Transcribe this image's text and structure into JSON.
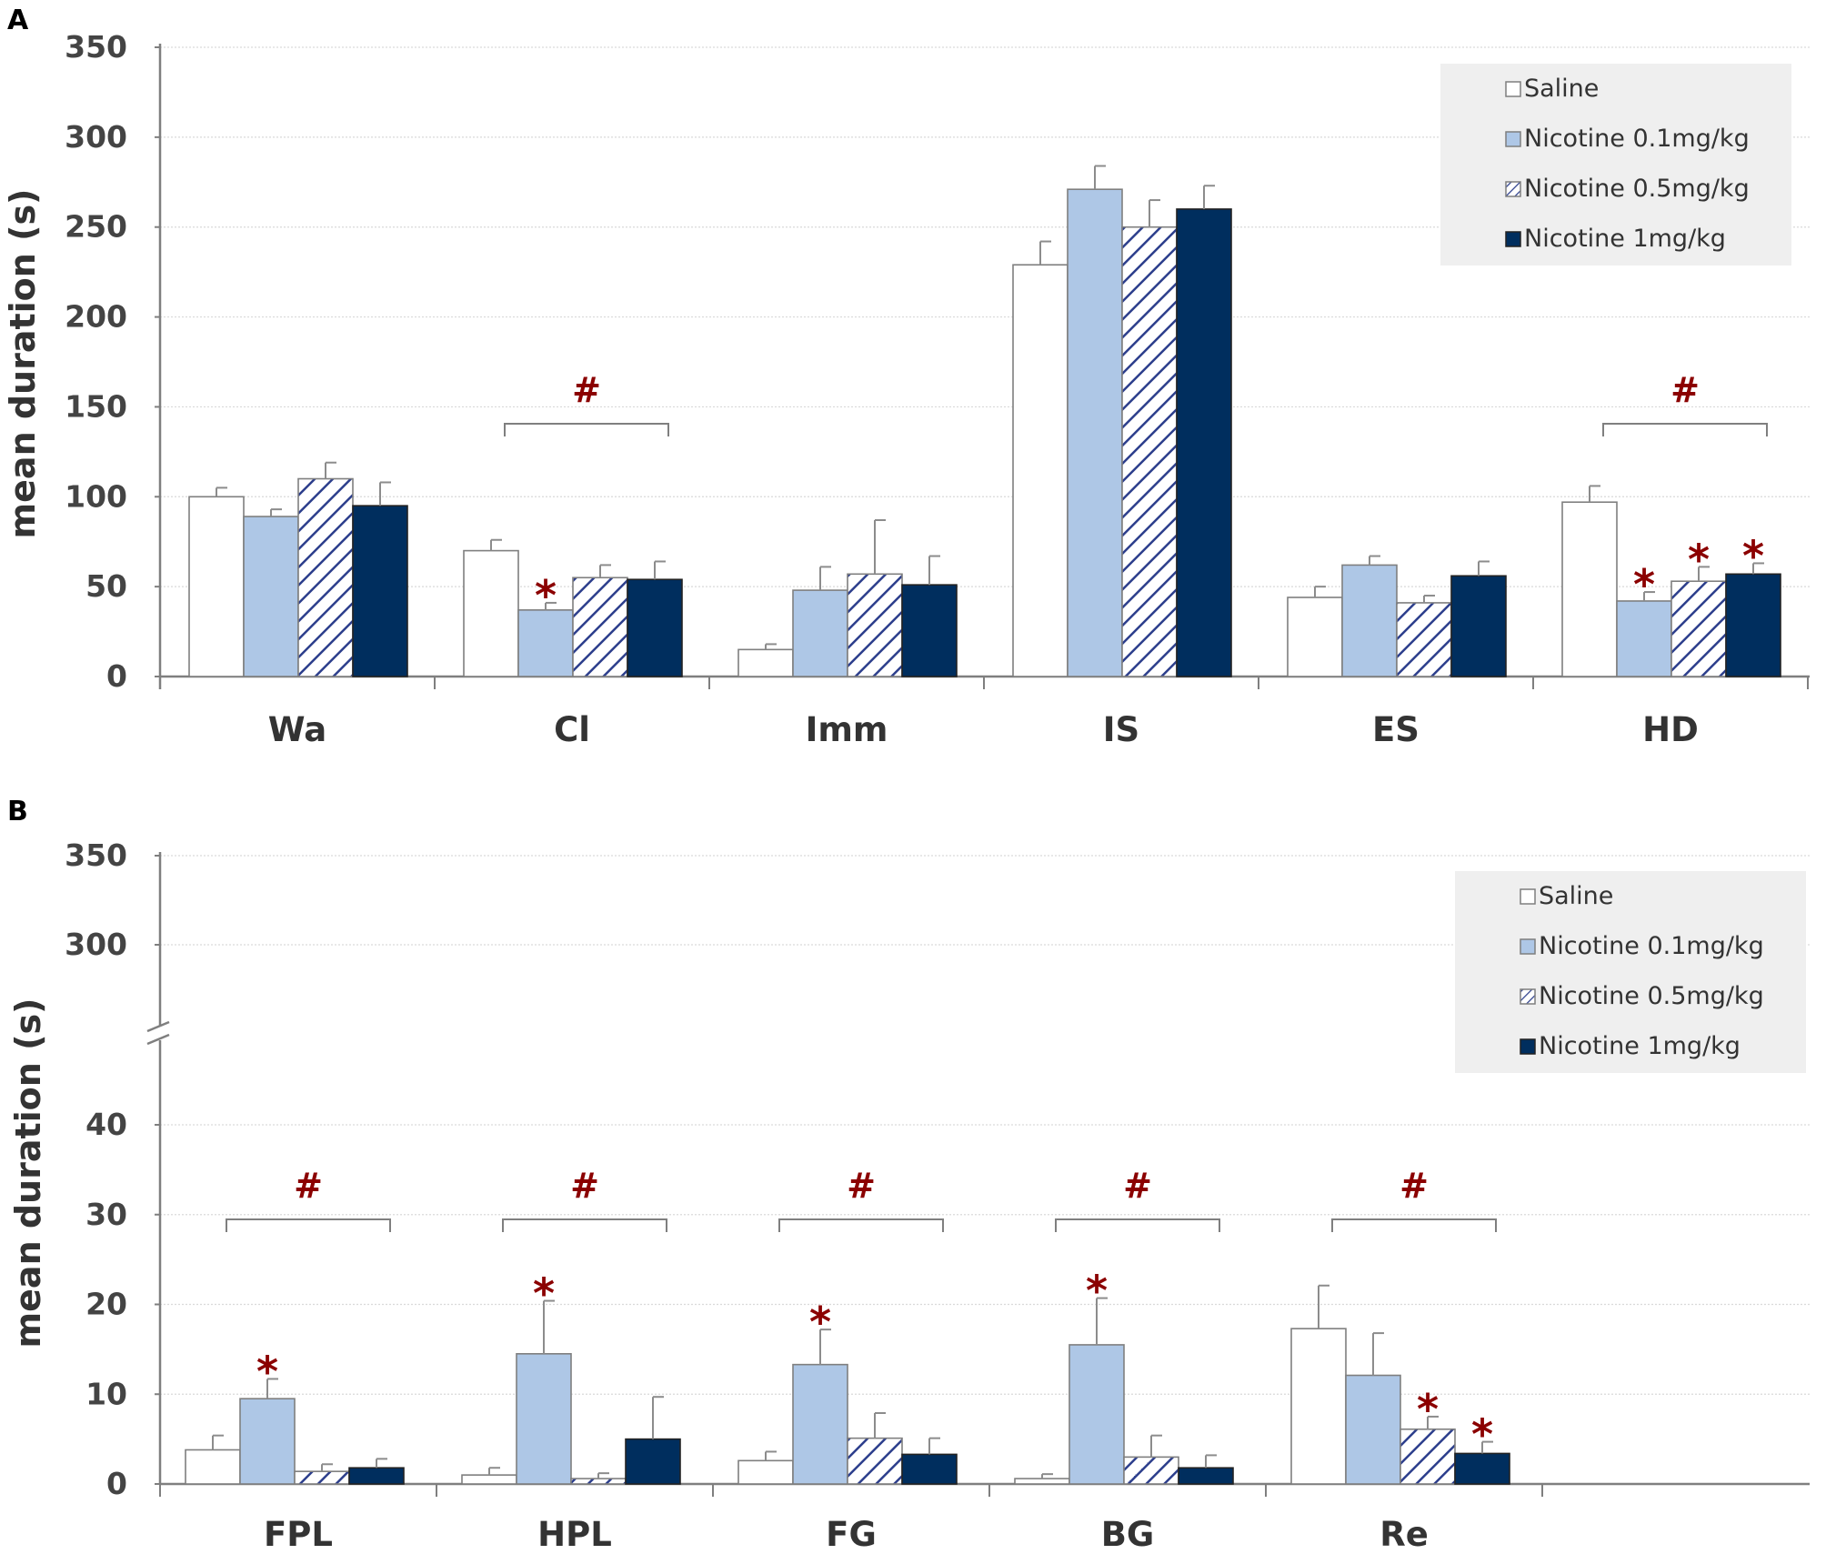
{
  "colors": {
    "saline": "#ffffff",
    "nic01": "#aec7e6",
    "nic05_stripe": "#2c3e8c",
    "nic1": "#002e5e",
    "significance": "#8b0000",
    "axis": "#7f7f7f",
    "legend_bg": "#efefef"
  },
  "legend": [
    {
      "label": "Saline",
      "key": "saline"
    },
    {
      "label": "Nicotine 0.1mg/kg",
      "key": "nic01"
    },
    {
      "label": "Nicotine 0.5mg/kg",
      "key": "nic05"
    },
    {
      "label": "Nicotine 1mg/kg",
      "key": "nic1"
    }
  ],
  "chart_data": [
    {
      "panel": "A",
      "type": "bar",
      "ylabel": "mean duration (s)",
      "ylim": [
        0,
        350
      ],
      "yticks": [
        0,
        50,
        100,
        150,
        200,
        250,
        300,
        350
      ],
      "grid": true,
      "legend_position": "top-right",
      "categories": [
        "Wa",
        "Cl",
        "Imm",
        "IS",
        "ES",
        "HD"
      ],
      "series": [
        {
          "name": "Saline",
          "values": [
            100,
            70,
            15,
            229,
            44,
            97
          ],
          "errors": [
            5,
            6,
            3,
            13,
            6,
            9
          ]
        },
        {
          "name": "Nicotine 0.1mg/kg",
          "values": [
            89,
            37,
            48,
            271,
            62,
            42
          ],
          "errors": [
            4,
            4,
            13,
            13,
            5,
            5
          ]
        },
        {
          "name": "Nicotine 0.5mg/kg",
          "values": [
            110,
            55,
            57,
            250,
            41,
            53
          ],
          "errors": [
            9,
            7,
            30,
            15,
            4,
            8
          ]
        },
        {
          "name": "Nicotine 1mg/kg",
          "values": [
            95,
            54,
            51,
            260,
            56,
            57
          ],
          "errors": [
            13,
            10,
            16,
            13,
            8,
            6
          ]
        }
      ],
      "brackets": [
        {
          "category": "Cl",
          "label": "#"
        },
        {
          "category": "HD",
          "label": "#"
        }
      ],
      "stars": [
        {
          "category": "Cl",
          "series": 1,
          "label": "*"
        },
        {
          "category": "HD",
          "series": 1,
          "label": "*"
        },
        {
          "category": "HD",
          "series": 2,
          "label": "*"
        },
        {
          "category": "HD",
          "series": 3,
          "label": "*"
        }
      ]
    },
    {
      "panel": "B",
      "type": "bar",
      "ylabel": "mean duration (s)",
      "ylim": [
        0,
        350
      ],
      "axis_break": [
        45,
        295
      ],
      "yticks": [
        0,
        10,
        20,
        30,
        40,
        300,
        350
      ],
      "grid": true,
      "legend_position": "top-right",
      "categories": [
        "FPL",
        "HPL",
        "FG",
        "BG",
        "Re"
      ],
      "series": [
        {
          "name": "Saline",
          "values": [
            3.8,
            1.0,
            2.6,
            0.6,
            17.3
          ],
          "errors": [
            1.6,
            0.8,
            1.0,
            0.5,
            4.8
          ]
        },
        {
          "name": "Nicotine 0.1mg/kg",
          "values": [
            9.5,
            14.5,
            13.3,
            15.5,
            12.1
          ],
          "errors": [
            2.2,
            5.9,
            3.9,
            5.2,
            4.7
          ]
        },
        {
          "name": "Nicotine 0.5mg/kg",
          "values": [
            1.4,
            0.6,
            5.1,
            3.0,
            6.1
          ],
          "errors": [
            0.8,
            0.6,
            2.8,
            2.4,
            1.4
          ]
        },
        {
          "name": "Nicotine 1mg/kg",
          "values": [
            1.8,
            5.0,
            3.3,
            1.8,
            3.4
          ],
          "errors": [
            1.0,
            4.7,
            1.8,
            1.4,
            1.3
          ]
        }
      ],
      "brackets": [
        {
          "category": "FPL",
          "label": "#"
        },
        {
          "category": "HPL",
          "label": "#"
        },
        {
          "category": "FG",
          "label": "#"
        },
        {
          "category": "BG",
          "label": "#"
        },
        {
          "category": "Re",
          "label": "#"
        }
      ],
      "stars": [
        {
          "category": "FPL",
          "series": 1,
          "label": "*"
        },
        {
          "category": "HPL",
          "series": 1,
          "label": "*"
        },
        {
          "category": "FG",
          "series": 1,
          "label": "*"
        },
        {
          "category": "BG",
          "series": 1,
          "label": "*"
        },
        {
          "category": "Re",
          "series": 2,
          "label": "*"
        },
        {
          "category": "Re",
          "series": 3,
          "label": "*"
        }
      ]
    }
  ]
}
